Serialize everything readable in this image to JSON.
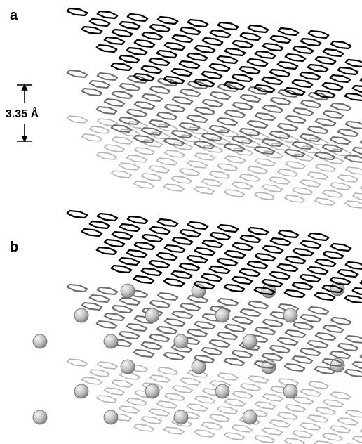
{
  "panels": [
    {
      "id": "a",
      "label": "a",
      "layers": 3,
      "intercalated": false
    },
    {
      "id": "b",
      "label": "b",
      "layers": 3,
      "intercalated": true
    }
  ],
  "interlayer_spacing": {
    "label": "3.35 Å"
  },
  "colors": {
    "layer_top": "#000000",
    "layer_middle": "#6b6b6b",
    "layer_bottom": "#b4b4b4",
    "atom_light": "#f4f4f4",
    "atom_dark": "#7a7a7a"
  }
}
